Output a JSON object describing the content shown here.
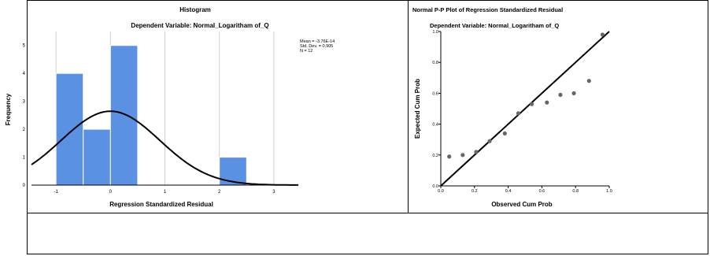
{
  "chart_data": [
    {
      "type": "bar",
      "title": "Histogram",
      "subtitle": "Dependent Variable: Normal_Logaritham of_Q",
      "xlabel": "Regression Standardized Residual",
      "ylabel": "Frequency",
      "xlim": [
        -1.45,
        3.45
      ],
      "ylim": [
        0,
        5.5
      ],
      "x_ticks": [
        "-1",
        "0",
        "1",
        "2",
        "3"
      ],
      "y_ticks": [
        "0",
        "1",
        "2",
        "3",
        "4",
        "5"
      ],
      "bins": [
        {
          "start": -1.0,
          "end": -0.5,
          "count": 4
        },
        {
          "start": -0.5,
          "end": 0.0,
          "count": 2
        },
        {
          "start": 0.0,
          "end": 0.5,
          "count": 5
        },
        {
          "start": 2.0,
          "end": 2.5,
          "count": 1
        }
      ],
      "stats": {
        "mean_label": "Mean = -3.76E-14",
        "sd_label": "Std. Dev. = 0.905",
        "n_label": "N = 12"
      },
      "normal_curve": {
        "mean": 0,
        "sd": 0.905,
        "n": 12,
        "bin_width": 0.5
      },
      "grid": "vertical",
      "bar_color": "#5b91e3"
    },
    {
      "type": "scatter",
      "title": "Normal P-P Plot of Regression Standardized Residual",
      "subtitle": "Dependent Variable: Normal_Logaritham of_Q",
      "xlabel": "Observed Cum Prob",
      "ylabel": "Expected Cum Prob",
      "xlim": [
        0,
        1
      ],
      "ylim": [
        0,
        1
      ],
      "x_ticks": [
        "0.0",
        "0.2",
        "0.4",
        "0.6",
        "0.8",
        "1.0"
      ],
      "y_ticks": [
        "0.0",
        "0.2",
        "0.4",
        "0.6",
        "0.8",
        "1.0"
      ],
      "points": [
        {
          "x": 0.05,
          "y": 0.19
        },
        {
          "x": 0.13,
          "y": 0.2
        },
        {
          "x": 0.21,
          "y": 0.22
        },
        {
          "x": 0.29,
          "y": 0.29
        },
        {
          "x": 0.38,
          "y": 0.34
        },
        {
          "x": 0.46,
          "y": 0.47
        },
        {
          "x": 0.54,
          "y": 0.53
        },
        {
          "x": 0.63,
          "y": 0.54
        },
        {
          "x": 0.71,
          "y": 0.59
        },
        {
          "x": 0.79,
          "y": 0.6
        },
        {
          "x": 0.88,
          "y": 0.68
        },
        {
          "x": 0.96,
          "y": 0.98
        }
      ],
      "reference_line": [
        [
          0,
          0
        ],
        [
          1,
          1
        ]
      ],
      "grid": "none",
      "point_color": "#666666"
    }
  ]
}
